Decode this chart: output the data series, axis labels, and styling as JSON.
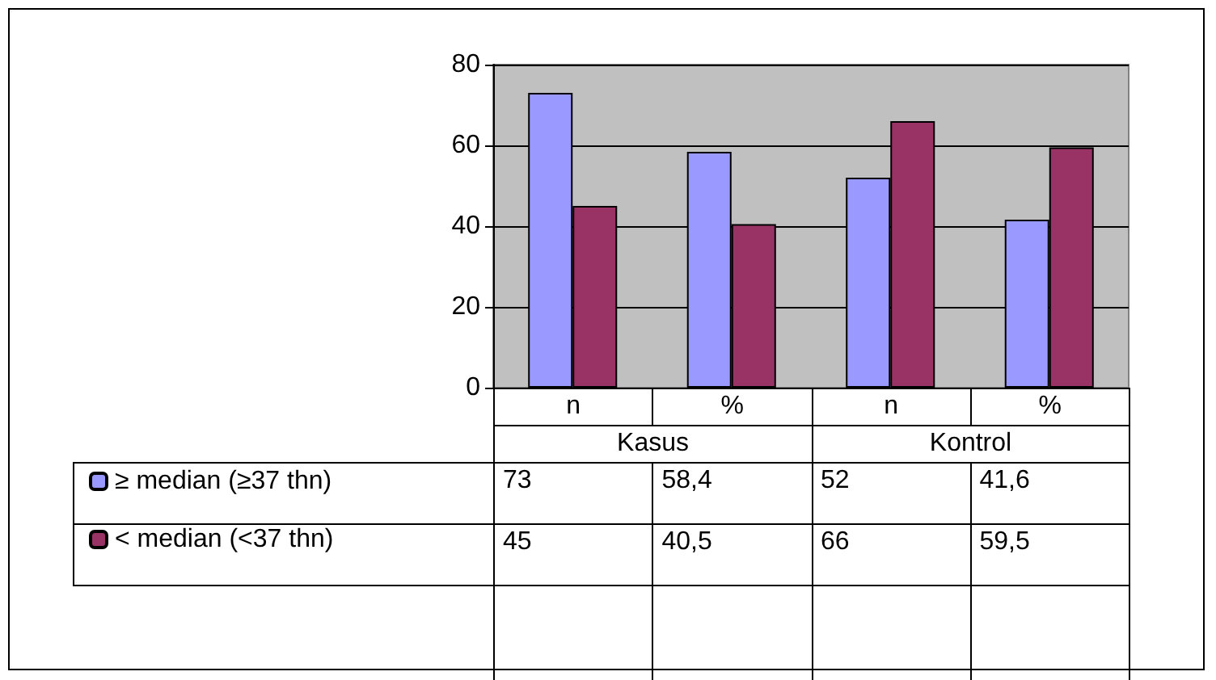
{
  "chart_data": {
    "type": "bar",
    "categories": [
      "n",
      "%",
      "n",
      "%"
    ],
    "series": [
      {
        "name": "≥ median (≥37 thn)",
        "color": "#9999ff",
        "values": [
          73,
          58.4,
          52,
          41.6
        ],
        "value_labels": [
          "73",
          "58,4",
          "52",
          "41,6"
        ]
      },
      {
        "name": "< median (<37 thn)",
        "color": "#993366",
        "values": [
          45,
          40.5,
          66,
          59.5
        ],
        "value_labels": [
          "45",
          "40,5",
          "66",
          "59,5"
        ]
      }
    ],
    "annotations": [
      "Kasus",
      "Kontrol"
    ],
    "ylim": [
      0,
      80
    ],
    "yticks": [
      0,
      20,
      40,
      60,
      80
    ],
    "grid": "y",
    "legend": "bottom left"
  }
}
